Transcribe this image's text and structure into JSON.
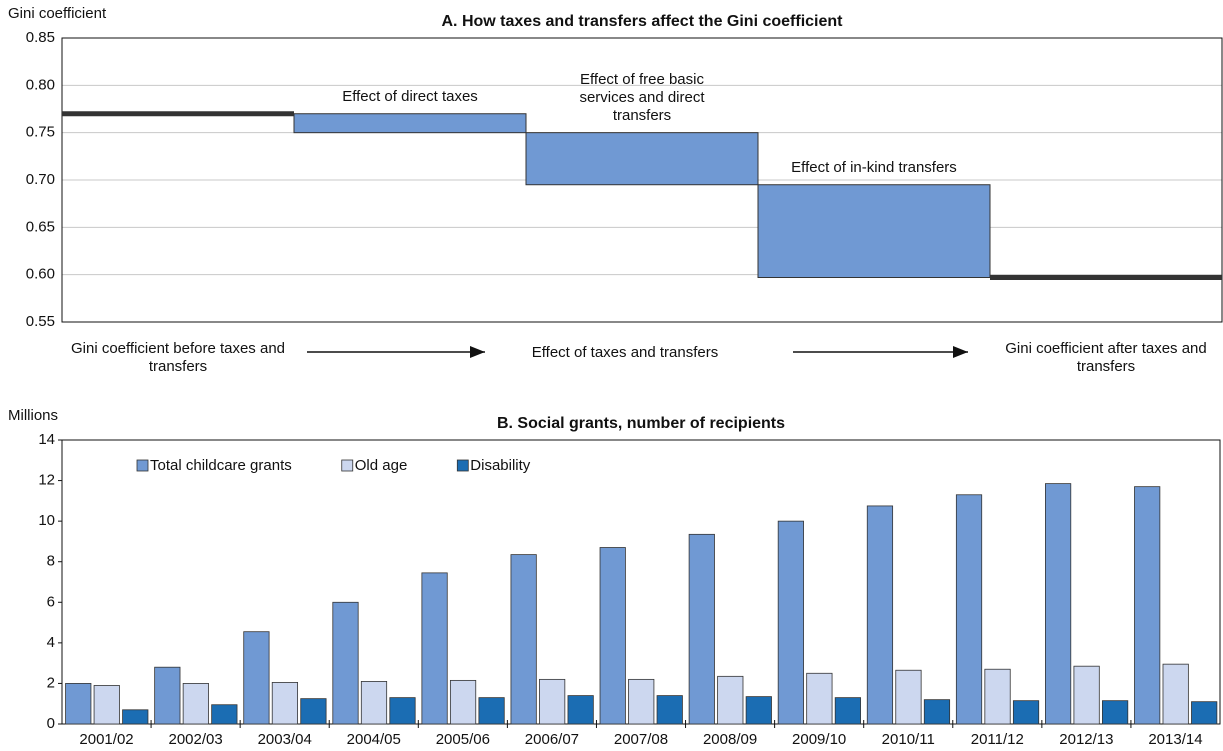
{
  "chart_data": [
    {
      "type": "waterfall",
      "title": "A. How taxes and transfers affect the Gini coefficient",
      "ylabel": "Gini coefficient",
      "categories": [
        "Gini coefficient before taxes and transfers",
        "Effect of direct taxes",
        "Effect of free basic services and direct transfers",
        "Effect of in-kind transfers",
        "Gini coefficient after taxes and transfers"
      ],
      "values": [
        0.77,
        -0.02,
        -0.055,
        -0.098,
        0.597
      ],
      "totals": [
        true,
        false,
        false,
        false,
        true
      ],
      "annotation": "Effect of taxes and transfers",
      "color": "#7099d3",
      "total_color": "#333333",
      "ylim": [
        0.55,
        0.85
      ],
      "yticks": [
        0.55,
        {
          "value": 0.6,
          "label": "0.60"
        },
        0.65,
        {
          "value": 0.7,
          "label": "0.70"
        },
        0.75,
        {
          "value": 0.8,
          "label": "0.80"
        },
        0.85
      ],
      "grid": true
    },
    {
      "type": "bar",
      "title": "B. Social grants, number of recipients",
      "ylabel": "Millions",
      "categories": [
        "2001/02",
        "2002/03",
        "2003/04",
        "2004/05",
        "2005/06",
        "2006/07",
        "2007/08",
        "2008/09",
        "2009/10",
        "2010/11",
        "2011/12",
        "2012/13",
        "2013/14"
      ],
      "series": [
        {
          "name": "Total childcare grants",
          "color": "#7099d3",
          "values": [
            2.0,
            2.8,
            4.55,
            6.0,
            7.45,
            8.35,
            8.7,
            9.35,
            10.0,
            10.75,
            11.3,
            11.85,
            11.7
          ]
        },
        {
          "name": "Old age",
          "color": "#ccd7ef",
          "values": [
            1.9,
            2.0,
            2.05,
            2.1,
            2.15,
            2.2,
            2.2,
            2.35,
            2.5,
            2.65,
            2.7,
            2.85,
            2.95
          ]
        },
        {
          "name": "Disability",
          "color": "#1b6db3",
          "values": [
            0.7,
            0.95,
            1.25,
            1.3,
            1.3,
            1.4,
            1.4,
            1.35,
            1.3,
            1.2,
            1.15,
            1.15,
            1.1
          ]
        }
      ],
      "ylim": [
        0,
        14
      ],
      "yticks": [
        0,
        2,
        4,
        6,
        8,
        10,
        12,
        14
      ],
      "grid": false,
      "legend": "top-left"
    }
  ]
}
